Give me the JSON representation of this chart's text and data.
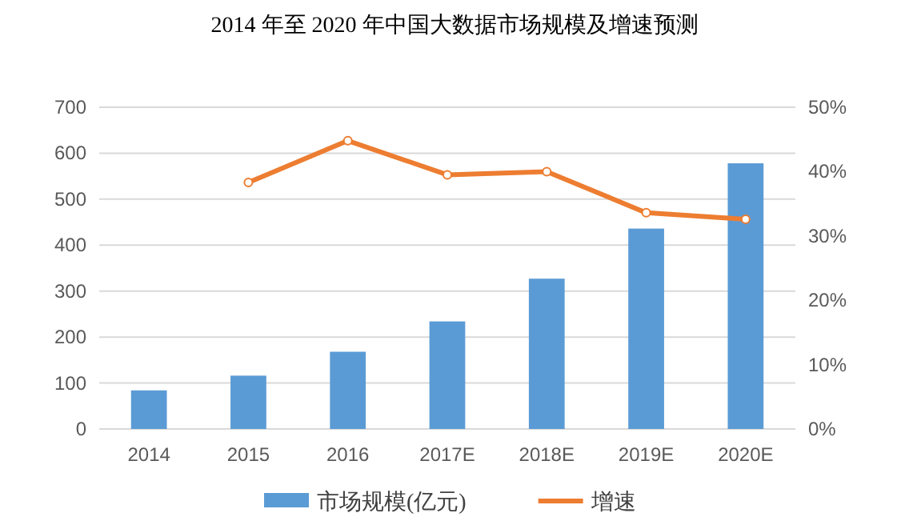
{
  "chart_data": {
    "type": "bar",
    "title": "2014 年至 2020 年中国大数据市场规模及增速预测",
    "categories": [
      "2014",
      "2015",
      "2016",
      "2017E",
      "2018E",
      "2019E",
      "2020E"
    ],
    "series": [
      {
        "name": "市场规模(亿元)",
        "color": "#5b9bd5",
        "values": [
          84,
          116,
          168,
          234,
          327,
          436,
          578
        ]
      },
      {
        "name": "增速",
        "type": "line",
        "axis": "y2",
        "color": "#ed7d31",
        "marker": "circle",
        "values": [
          null,
          38.3,
          44.8,
          39.5,
          40.0,
          33.6,
          32.6
        ]
      }
    ],
    "ylim": [
      0,
      700
    ],
    "yticks": [
      0,
      100,
      200,
      300,
      400,
      500,
      600,
      700
    ],
    "y2lim": [
      0,
      50
    ],
    "y2ticks": [
      {
        "value": 0,
        "label": "0%"
      },
      {
        "value": 10,
        "label": "10%"
      },
      {
        "value": 20,
        "label": "20%"
      },
      {
        "value": 30,
        "label": "30%"
      },
      {
        "value": 40,
        "label": "40%"
      },
      {
        "value": 50,
        "label": "50%"
      }
    ],
    "grid": "y",
    "legend": "bottom"
  }
}
